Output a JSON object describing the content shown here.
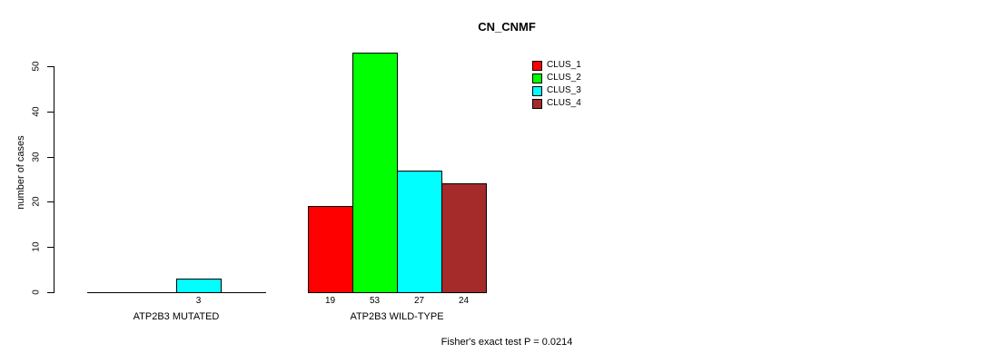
{
  "title": "CN_CNMF",
  "chart_data": {
    "type": "bar",
    "title": "CN_CNMF",
    "xlabel": "",
    "ylabel": "number of cases",
    "ylim": [
      0,
      50
    ],
    "yticks": [
      0,
      10,
      20,
      30,
      40,
      50
    ],
    "grid": false,
    "legend_position": "top-right",
    "categories": [
      "ATP2B3 MUTATED",
      "ATP2B3 WILD-TYPE"
    ],
    "series": [
      {
        "name": "CLUS_1",
        "color": "#FF0000",
        "values": [
          0,
          19
        ]
      },
      {
        "name": "CLUS_2",
        "color": "#00FF00",
        "values": [
          0,
          53
        ]
      },
      {
        "name": "CLUS_3",
        "color": "#00FFFF",
        "values": [
          3,
          27
        ]
      },
      {
        "name": "CLUS_4",
        "color": "#A52A2A",
        "values": [
          0,
          24
        ]
      }
    ],
    "bar_value_labels": [
      "3",
      "19",
      "53",
      "27",
      "24"
    ],
    "annotation": "Fisher's exact test P = 0.0214"
  },
  "legend": {
    "items": [
      {
        "label": "CLUS_1",
        "color": "#FF0000"
      },
      {
        "label": "CLUS_2",
        "color": "#00FF00"
      },
      {
        "label": "CLUS_3",
        "color": "#00FFFF"
      },
      {
        "label": "CLUS_4",
        "color": "#A52A2A"
      }
    ]
  },
  "footer": "Fisher's exact test P = 0.0214"
}
